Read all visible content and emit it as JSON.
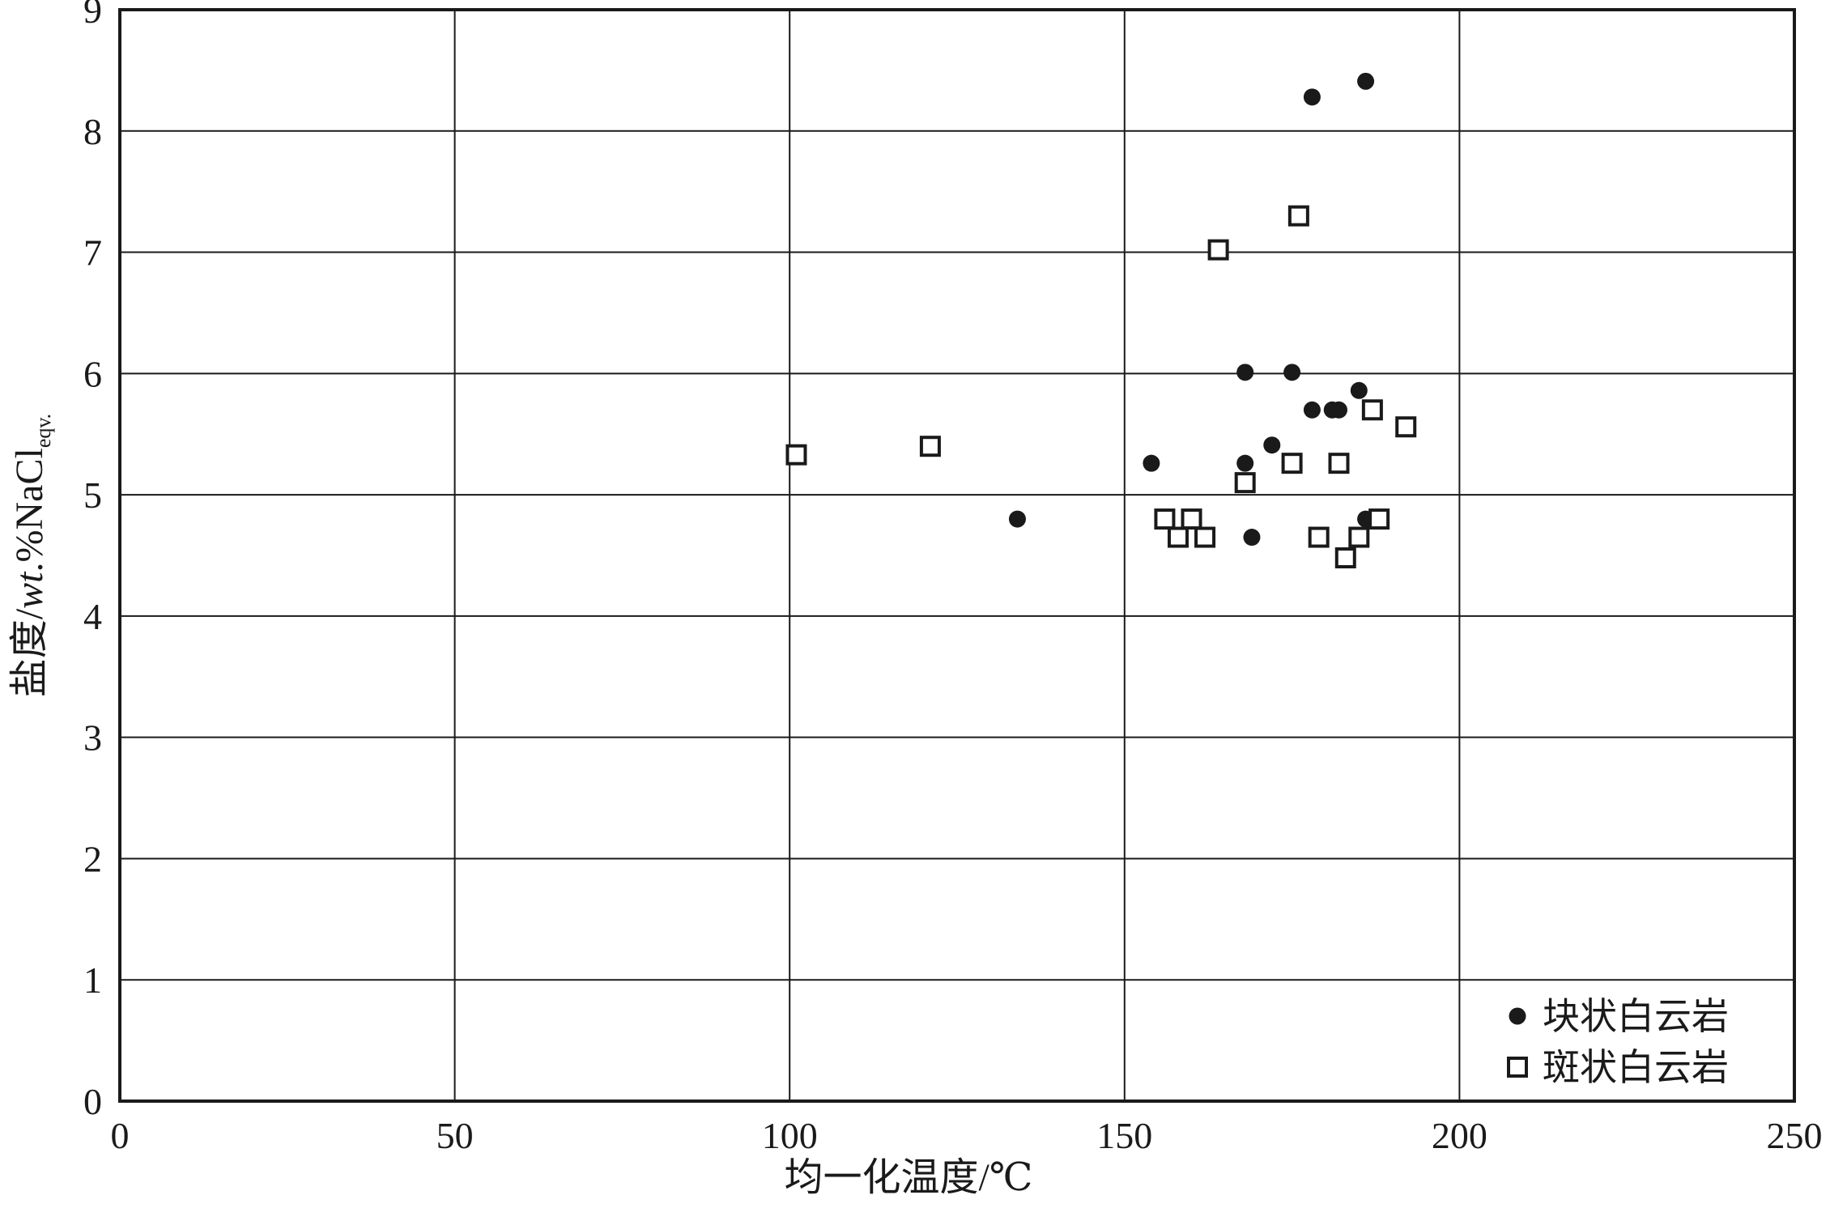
{
  "chart_data": {
    "type": "scatter",
    "title": "",
    "xlabel": "均一化温度/℃",
    "ylabel": {
      "prefix": "盐度/",
      "italic": "wt",
      "mid": ".%NaCl",
      "subscript": "eqv."
    },
    "xlim": [
      0,
      250
    ],
    "ylim": [
      0,
      9
    ],
    "x_ticks": [
      "0",
      "50",
      "100",
      "150",
      "200",
      "250"
    ],
    "y_ticks": [
      "0",
      "1",
      "2",
      "3",
      "4",
      "5",
      "6",
      "7",
      "8",
      "9"
    ],
    "grid": true,
    "legend_position": "bottom-right",
    "series": [
      {
        "name": "块状白云岩",
        "marker": "filled-circle",
        "color": "#1a1a1a",
        "points": [
          [
            178,
            8.28
          ],
          [
            186,
            8.41
          ],
          [
            168,
            6.01
          ],
          [
            175,
            6.01
          ],
          [
            185,
            5.86
          ],
          [
            178,
            5.7
          ],
          [
            181,
            5.7
          ],
          [
            182,
            5.7
          ],
          [
            172,
            5.41
          ],
          [
            154,
            5.26
          ],
          [
            168,
            5.26
          ],
          [
            134,
            4.8
          ],
          [
            186,
            4.8
          ],
          [
            169,
            4.65
          ]
        ]
      },
      {
        "name": "斑状白云岩",
        "marker": "open-square",
        "color": "#1a1a1a",
        "points": [
          [
            176,
            7.3
          ],
          [
            164,
            7.02
          ],
          [
            187,
            5.7
          ],
          [
            192,
            5.56
          ],
          [
            121,
            5.4
          ],
          [
            101,
            5.33
          ],
          [
            175,
            5.26
          ],
          [
            182,
            5.26
          ],
          [
            168,
            5.1
          ],
          [
            156,
            4.8
          ],
          [
            160,
            4.8
          ],
          [
            188,
            4.8
          ],
          [
            158,
            4.65
          ],
          [
            162,
            4.65
          ],
          [
            179,
            4.65
          ],
          [
            185,
            4.65
          ],
          [
            183,
            4.48
          ]
        ]
      }
    ]
  }
}
